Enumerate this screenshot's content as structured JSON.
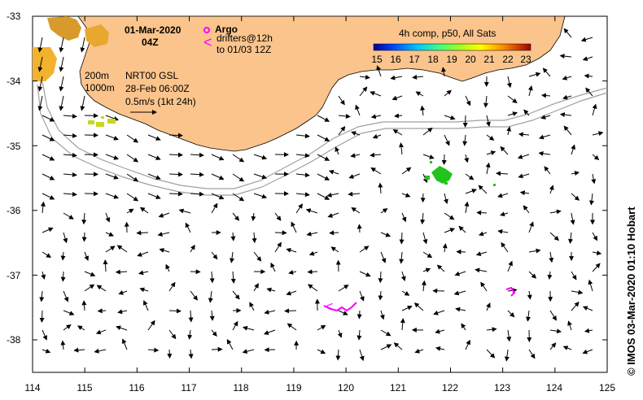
{
  "map": {
    "title_date": "01-Mar-2020",
    "title_time": "04Z",
    "lon_ticks": [
      "114",
      "115",
      "116",
      "117",
      "118",
      "119",
      "120",
      "121",
      "122",
      "123",
      "124",
      "125"
    ],
    "lat_ticks": [
      "-33",
      "-34",
      "-35",
      "-36",
      "-37",
      "-38"
    ],
    "lon_range": [
      114,
      125
    ],
    "lat_range": [
      -38.5,
      -33
    ],
    "legend": {
      "argo_label": "Argo",
      "drifters_label": "drifters@12h",
      "drifters_until": "to 01/03 12Z",
      "depth_200": "200m",
      "depth_1000": "1000m",
      "model_label": "NRT00 GSL",
      "model_time": "28-Feb 06:00Z",
      "scale_label": "0.5m/s (1kt 24h)",
      "sst_title": "4h comp, p50, All Sats",
      "sst_ticks": [
        "15",
        "16",
        "17",
        "18",
        "19",
        "20",
        "21",
        "22",
        "23"
      ]
    },
    "credit": "© IMOS 03-Mar-2020 01:10 Hobart",
    "colors": {
      "land": "#fbc48c",
      "argo": "#ff00ff",
      "drifters": "#ff00ff",
      "sst_green": "#22c41c",
      "sst_yellow": "#c8d81a",
      "isobath": "#a0a0a0"
    }
  }
}
